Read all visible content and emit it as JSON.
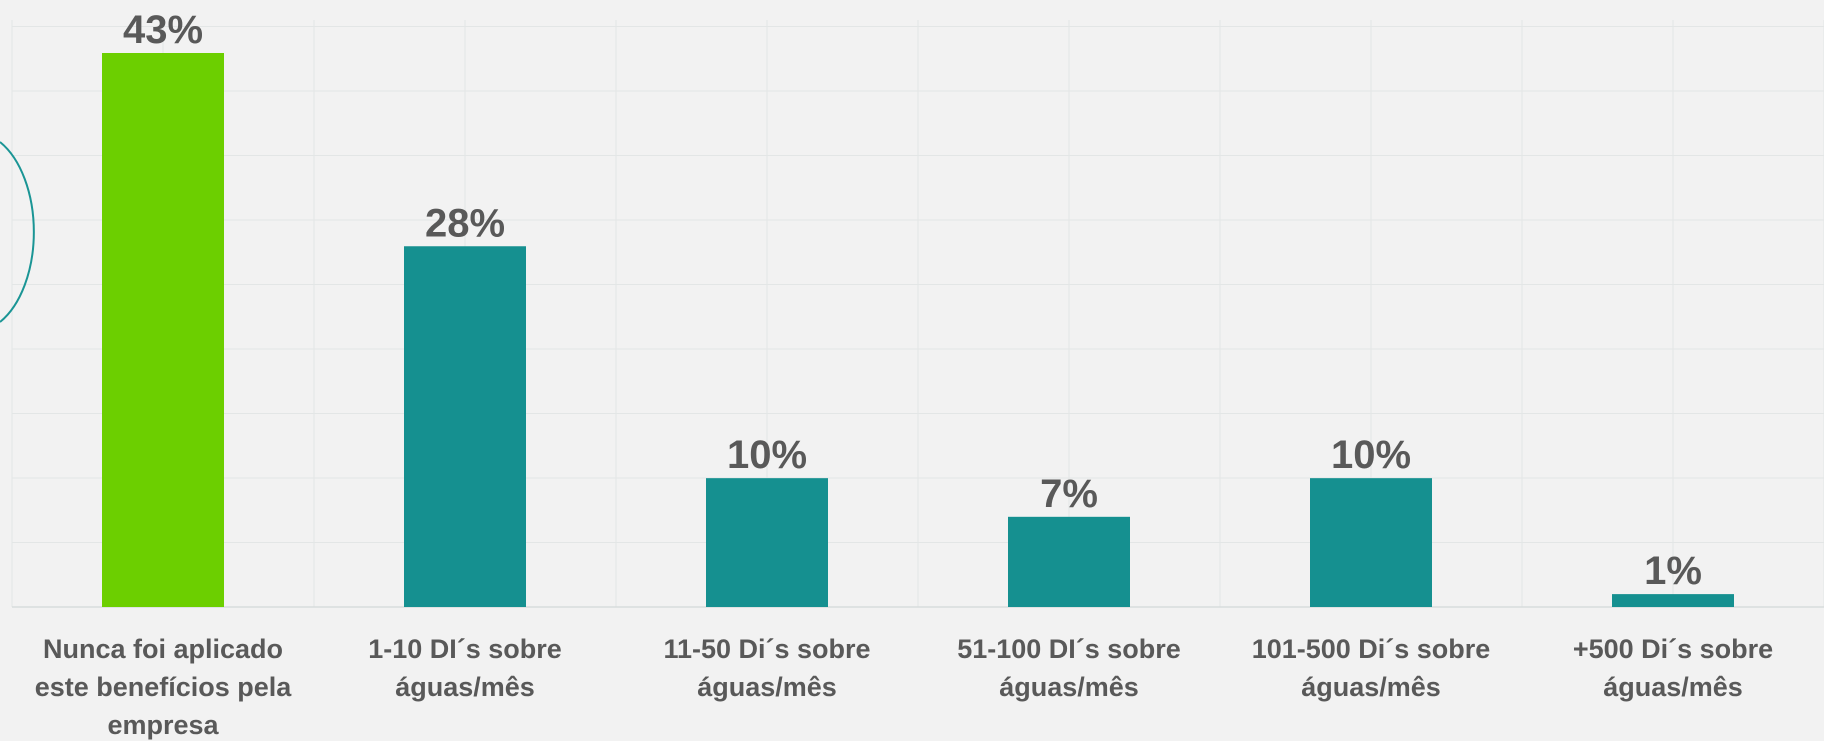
{
  "chart_data": {
    "type": "bar",
    "categories": [
      [
        "Nunca foi aplicado",
        "este benefícios pela",
        "empresa"
      ],
      [
        "1-10 DI´s sobre",
        "águas/mês"
      ],
      [
        "11-50 Di´s sobre",
        "águas/mês"
      ],
      [
        "51-100 DI´s sobre",
        "águas/mês"
      ],
      [
        "101-500 Di´s sobre",
        "águas/mês"
      ],
      [
        "+500 Di´s sobre",
        "águas/mês"
      ]
    ],
    "values": [
      43,
      28,
      10,
      7,
      10,
      1
    ],
    "value_labels": [
      "43%",
      "28%",
      "10%",
      "7%",
      "10%",
      "1%"
    ],
    "ylim": [
      0,
      45
    ],
    "grid": true,
    "colors": {
      "highlight": "#6ccf00",
      "default": "#159090",
      "grid": "#e3e6e6",
      "text": "#595959",
      "background": "#f2f2f2",
      "arc": "#1a9595"
    },
    "highlight_index": 0
  }
}
